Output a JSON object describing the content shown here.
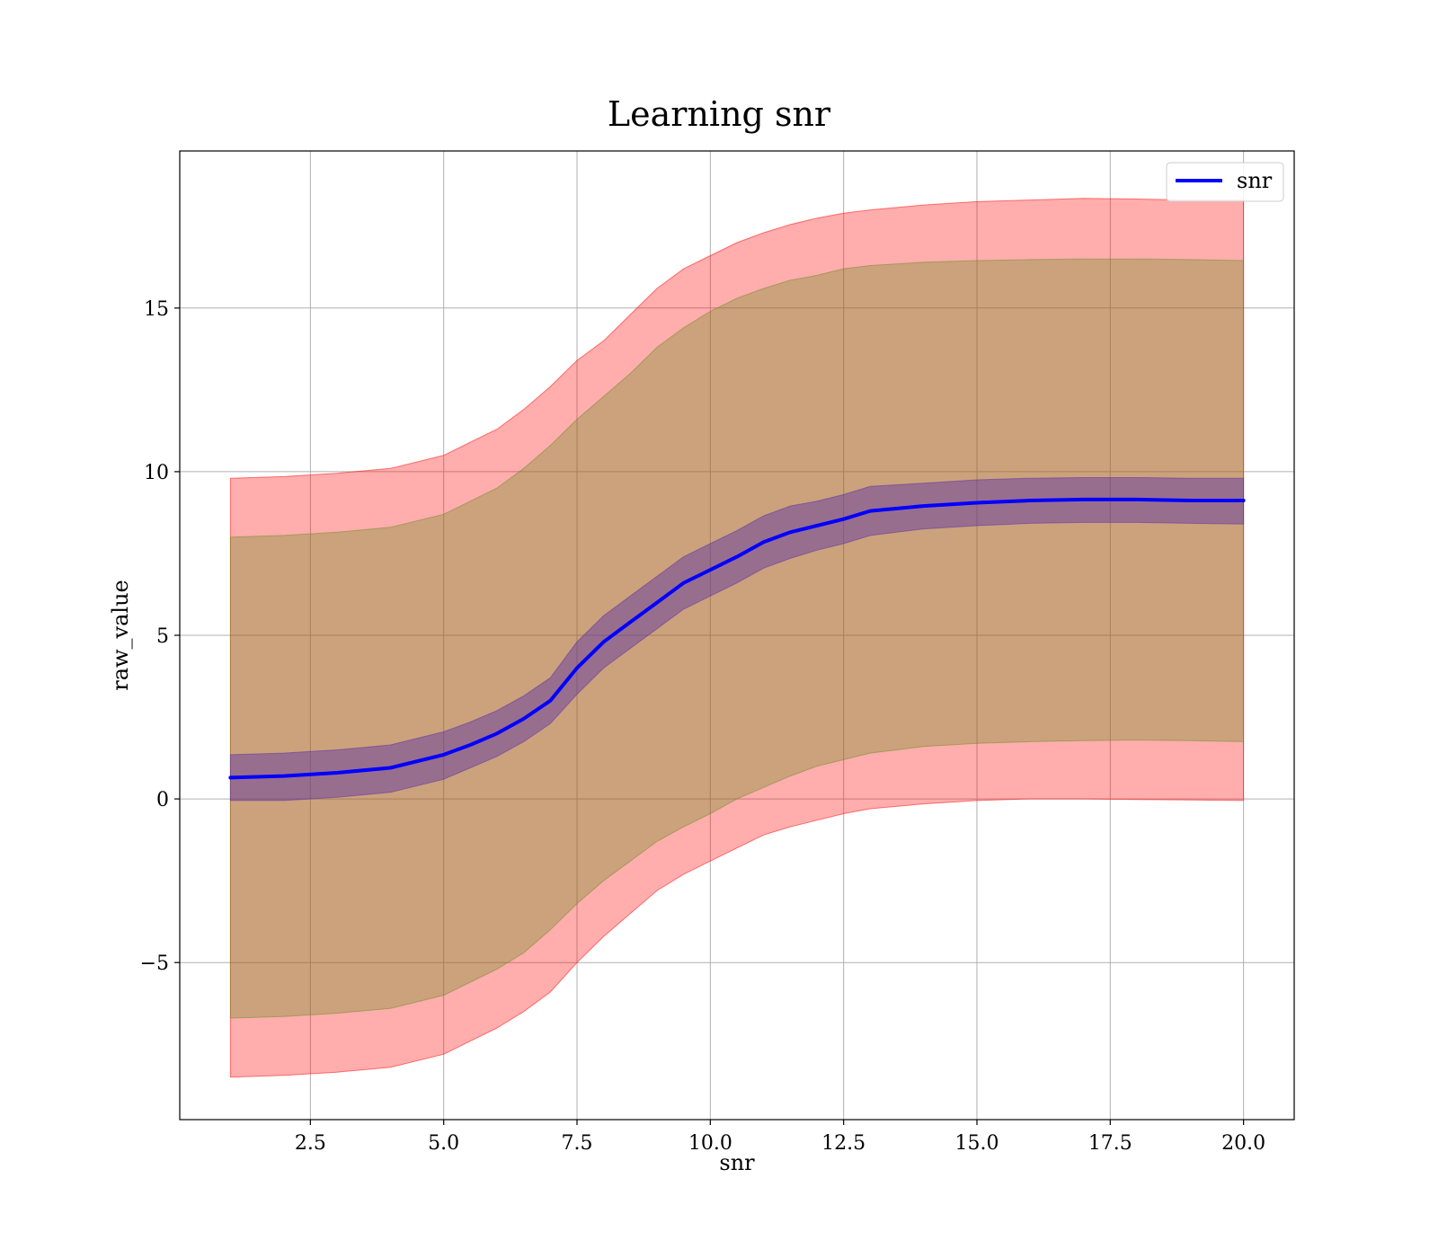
{
  "chart_data": {
    "type": "line",
    "title": "Learning snr",
    "xlabel": "snr",
    "ylabel": "raw_value",
    "xlim": [
      0.05,
      20.95
    ],
    "ylim": [
      -9.8,
      19.8
    ],
    "x_ticks": [
      2.5,
      5.0,
      7.5,
      10.0,
      12.5,
      15.0,
      17.5,
      20.0
    ],
    "x_tick_labels": [
      "2.5",
      "5.0",
      "7.5",
      "10.0",
      "12.5",
      "15.0",
      "17.5",
      "20.0"
    ],
    "y_ticks": [
      -5,
      0,
      5,
      10,
      15
    ],
    "y_tick_labels": [
      "−5",
      "0",
      "5",
      "10",
      "15"
    ],
    "grid": true,
    "legend_position": "top-right",
    "series": [
      {
        "name": "snr",
        "color": "#0000ff",
        "x": [
          1.0,
          2.0,
          3.0,
          4.0,
          5.0,
          5.5,
          6.0,
          6.5,
          7.0,
          7.5,
          8.0,
          8.5,
          9.0,
          9.5,
          10.0,
          10.5,
          11.0,
          11.5,
          12.0,
          12.5,
          13.0,
          14.0,
          15.0,
          16.0,
          17.0,
          18.0,
          19.0,
          20.0
        ],
        "y": [
          0.65,
          0.7,
          0.8,
          0.95,
          1.35,
          1.65,
          2.0,
          2.45,
          3.0,
          4.0,
          4.8,
          5.4,
          6.0,
          6.6,
          7.0,
          7.4,
          7.85,
          8.15,
          8.35,
          8.55,
          8.8,
          8.95,
          9.05,
          9.12,
          9.15,
          9.15,
          9.12,
          9.12
        ]
      }
    ],
    "bands": [
      {
        "color": "#ff0000",
        "opacity": 0.32,
        "x": [
          1.0,
          2.0,
          3.0,
          4.0,
          5.0,
          5.5,
          6.0,
          6.5,
          7.0,
          7.5,
          8.0,
          8.5,
          9.0,
          9.5,
          10.0,
          10.5,
          11.0,
          11.5,
          12.0,
          12.5,
          13.0,
          14.0,
          15.0,
          16.0,
          17.0,
          18.0,
          19.0,
          20.0
        ],
        "lower": [
          -8.5,
          -8.45,
          -8.35,
          -8.2,
          -7.8,
          -7.4,
          -7.0,
          -6.5,
          -5.9,
          -5.0,
          -4.2,
          -3.5,
          -2.8,
          -2.3,
          -1.9,
          -1.5,
          -1.1,
          -0.85,
          -0.65,
          -0.45,
          -0.3,
          -0.15,
          -0.05,
          0.0,
          0.0,
          -0.02,
          -0.03,
          -0.05
        ],
        "upper": [
          9.8,
          9.85,
          9.95,
          10.1,
          10.5,
          10.9,
          11.3,
          11.9,
          12.6,
          13.4,
          14.0,
          14.8,
          15.6,
          16.2,
          16.6,
          17.0,
          17.3,
          17.55,
          17.75,
          17.9,
          18.0,
          18.15,
          18.25,
          18.3,
          18.35,
          18.33,
          18.3,
          18.3
        ]
      },
      {
        "color": "#6b8e23",
        "opacity": 0.35,
        "x": [
          1.0,
          2.0,
          3.0,
          4.0,
          5.0,
          5.5,
          6.0,
          6.5,
          7.0,
          7.5,
          8.0,
          8.5,
          9.0,
          9.5,
          10.0,
          10.5,
          11.0,
          11.5,
          12.0,
          12.5,
          13.0,
          14.0,
          15.0,
          16.0,
          17.0,
          18.0,
          19.0,
          20.0
        ],
        "lower": [
          -6.7,
          -6.65,
          -6.55,
          -6.4,
          -6.0,
          -5.6,
          -5.2,
          -4.7,
          -4.0,
          -3.2,
          -2.5,
          -1.9,
          -1.3,
          -0.85,
          -0.45,
          0.0,
          0.35,
          0.7,
          1.0,
          1.2,
          1.4,
          1.6,
          1.7,
          1.75,
          1.78,
          1.8,
          1.78,
          1.75
        ],
        "upper": [
          8.0,
          8.05,
          8.15,
          8.3,
          8.7,
          9.1,
          9.5,
          10.1,
          10.8,
          11.6,
          12.3,
          13.0,
          13.8,
          14.4,
          14.9,
          15.3,
          15.6,
          15.85,
          16.0,
          16.2,
          16.3,
          16.4,
          16.45,
          16.48,
          16.5,
          16.5,
          16.48,
          16.45
        ]
      },
      {
        "color": "#5a2ea6",
        "opacity": 0.45,
        "x": [
          1.0,
          2.0,
          3.0,
          4.0,
          5.0,
          5.5,
          6.0,
          6.5,
          7.0,
          7.5,
          8.0,
          8.5,
          9.0,
          9.5,
          10.0,
          10.5,
          11.0,
          11.5,
          12.0,
          12.5,
          13.0,
          14.0,
          15.0,
          16.0,
          17.0,
          18.0,
          19.0,
          20.0
        ],
        "lower": [
          -0.05,
          -0.05,
          0.05,
          0.2,
          0.6,
          0.95,
          1.3,
          1.75,
          2.3,
          3.2,
          4.0,
          4.6,
          5.2,
          5.8,
          6.2,
          6.6,
          7.05,
          7.35,
          7.6,
          7.8,
          8.05,
          8.25,
          8.35,
          8.42,
          8.45,
          8.45,
          8.42,
          8.4
        ],
        "upper": [
          1.35,
          1.4,
          1.5,
          1.65,
          2.05,
          2.35,
          2.7,
          3.15,
          3.7,
          4.8,
          5.6,
          6.2,
          6.8,
          7.4,
          7.8,
          8.2,
          8.65,
          8.95,
          9.1,
          9.3,
          9.55,
          9.65,
          9.75,
          9.8,
          9.82,
          9.82,
          9.8,
          9.8
        ]
      }
    ]
  }
}
